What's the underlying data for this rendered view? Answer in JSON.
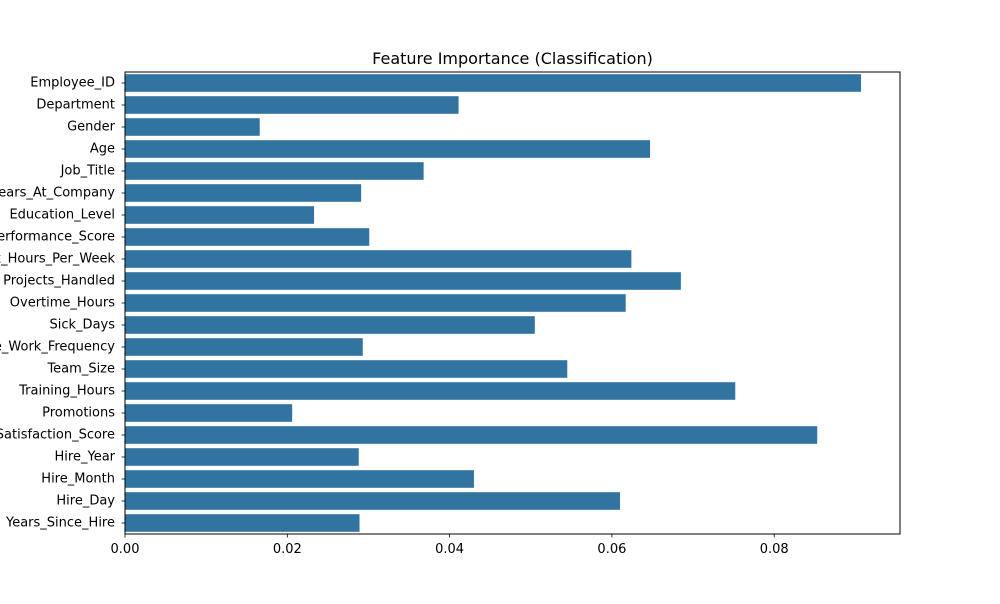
{
  "chart_data": {
    "type": "bar",
    "orientation": "horizontal",
    "title": "Feature Importance (Classification)",
    "xlabel": "",
    "ylabel": "",
    "xlim": [
      0,
      0.0955
    ],
    "x_ticks": [
      0.0,
      0.02,
      0.04,
      0.06,
      0.08
    ],
    "x_tick_labels": [
      "0.00",
      "0.02",
      "0.04",
      "0.06",
      "0.08"
    ],
    "grid": false,
    "legend": "none",
    "bar_color": "#3274a1",
    "categories": [
      "Employee_ID",
      "Department",
      "Gender",
      "Age",
      "Job_Title",
      "Years_At_Company",
      "Education_Level",
      "Performance_Score",
      "Work_Hours_Per_Week",
      "Projects_Handled",
      "Overtime_Hours",
      "Sick_Days",
      "Remote_Work_Frequency",
      "Team_Size",
      "Training_Hours",
      "Promotions",
      "Employee_Satisfaction_Score",
      "Hire_Year",
      "Hire_Month",
      "Hire_Day",
      "Years_Since_Hire"
    ],
    "values": [
      0.0907,
      0.0411,
      0.0166,
      0.0647,
      0.0368,
      0.0291,
      0.0233,
      0.0301,
      0.0624,
      0.0685,
      0.0617,
      0.0505,
      0.0293,
      0.0545,
      0.0752,
      0.0206,
      0.0853,
      0.0288,
      0.043,
      0.061,
      0.0289
    ]
  }
}
